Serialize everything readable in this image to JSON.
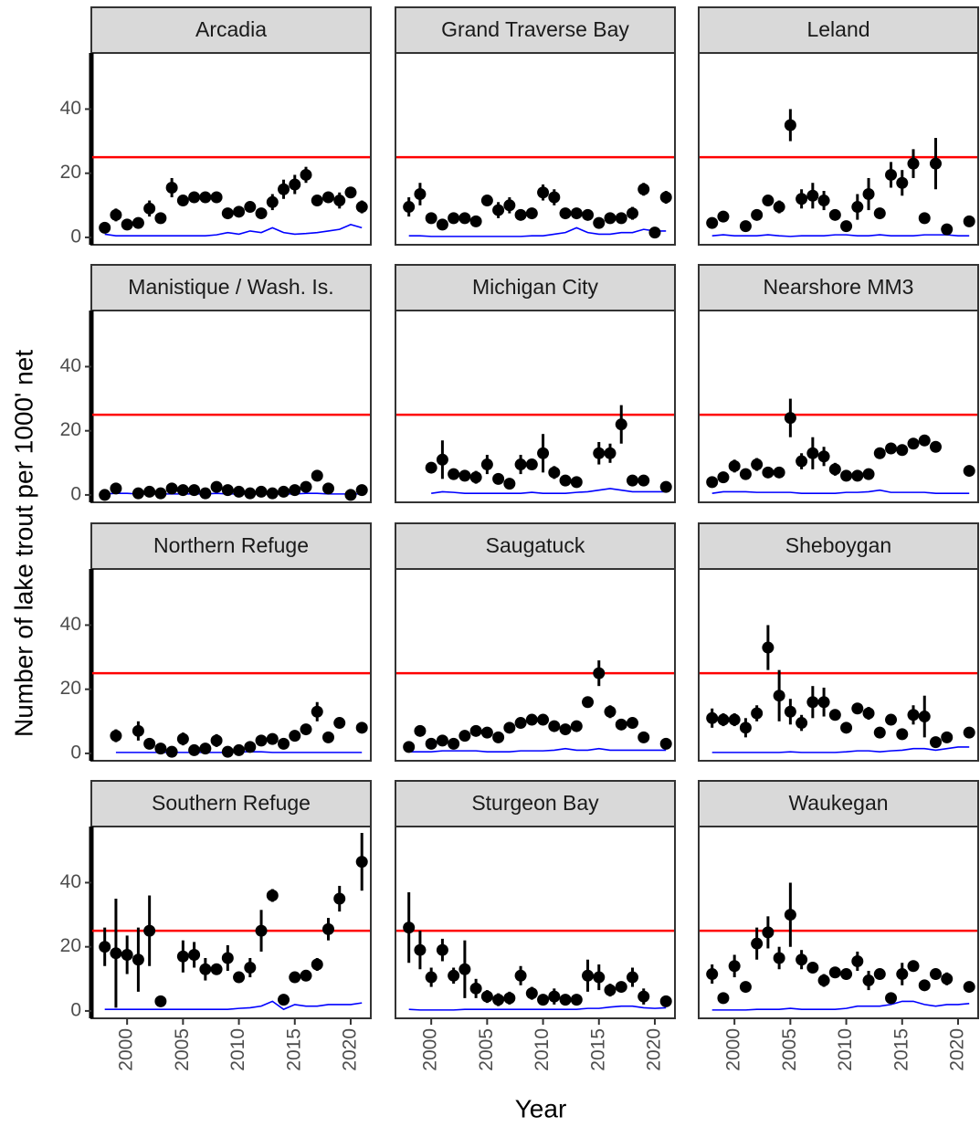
{
  "chart_data": {
    "type": "facet-errorbar",
    "xlabel": "Year",
    "ylabel": "Number of lake trout per 1000' net",
    "xlim": [
      1996.8,
      2021.8
    ],
    "ylim": [
      -2.3,
      57.5
    ],
    "xticks": [
      2000,
      2005,
      2010,
      2015,
      2020
    ],
    "yticks": [
      0,
      20,
      40
    ],
    "point_color": "#000000",
    "line_color": "#0000ff",
    "reference_line": {
      "value": 25,
      "color": "#ff0000"
    },
    "x": [
      1998,
      1999,
      2000,
      2001,
      2002,
      2003,
      2004,
      2005,
      2006,
      2007,
      2008,
      2009,
      2010,
      2011,
      2012,
      2013,
      2014,
      2015,
      2016,
      2017,
      2018,
      2019,
      2020,
      2021
    ],
    "panels": [
      {
        "title": "Arcadia",
        "values": [
          3,
          7,
          4,
          4.5,
          9,
          6,
          15.5,
          11.5,
          12.5,
          12.5,
          12.5,
          7.5,
          8,
          9.5,
          7.5,
          11,
          15,
          16.5,
          19.5,
          11.5,
          12.5,
          11.5,
          14,
          9.5
        ],
        "errors": [
          1,
          2,
          1,
          1,
          2.5,
          1,
          3,
          1.5,
          1.5,
          1.5,
          1.5,
          1,
          1,
          1.5,
          1,
          2.5,
          3,
          3,
          2.5,
          1.5,
          1.5,
          2.5,
          1.5,
          2
        ],
        "line": [
          1,
          0.5,
          0.5,
          0.5,
          0.5,
          0.5,
          0.5,
          0.5,
          0.5,
          0.5,
          0.8,
          1.5,
          1,
          2,
          1.5,
          3,
          1.5,
          1,
          1.2,
          1.5,
          2,
          2.5,
          4,
          3
        ]
      },
      {
        "title": "Grand Traverse Bay",
        "values": [
          9.5,
          13.5,
          6,
          4,
          6,
          6,
          5,
          11.5,
          8.5,
          10,
          7,
          7.5,
          14,
          12.5,
          7.5,
          7.5,
          7,
          4.5,
          6,
          6,
          7.5,
          15,
          1.5,
          12.5
        ],
        "errors": [
          3,
          3.5,
          1,
          1,
          1,
          1,
          1,
          1,
          2.5,
          2.5,
          1,
          1,
          2.5,
          2.5,
          1,
          1,
          1,
          1,
          1,
          1,
          2,
          2,
          1,
          2
        ],
        "line": [
          0.5,
          0.5,
          0.3,
          0.3,
          0.3,
          0.3,
          0.3,
          0.3,
          0.3,
          0.3,
          0.3,
          0.5,
          0.5,
          1,
          1.5,
          3,
          1.5,
          1,
          1,
          1.5,
          1.5,
          2.5,
          2,
          2
        ]
      },
      {
        "title": "Leland",
        "values": [
          4.5,
          6.5,
          null,
          3.5,
          7,
          11.5,
          9.5,
          35,
          12,
          13,
          11.5,
          7,
          3.5,
          9.5,
          13.5,
          7.5,
          19.5,
          17,
          23,
          6,
          23,
          2.5,
          null,
          5
        ],
        "errors": [
          1.5,
          1,
          null,
          1,
          1.5,
          1.5,
          2,
          5,
          3,
          4,
          3,
          1,
          1,
          4,
          5,
          1,
          4,
          4,
          4.5,
          1,
          8,
          1,
          null,
          1
        ],
        "line": [
          0.5,
          0.8,
          0.5,
          0.5,
          0.5,
          0.8,
          0.5,
          0.3,
          0.5,
          0.5,
          0.5,
          0.8,
          0.8,
          0.5,
          0.5,
          0.8,
          0.5,
          0.5,
          0.5,
          0.8,
          0.8,
          0.8,
          0.5,
          0.5
        ]
      },
      {
        "title": "Manistique / Wash. Is.",
        "values": [
          0,
          2,
          null,
          0.5,
          1,
          0.5,
          2,
          1.5,
          1.5,
          0.5,
          2.5,
          1.5,
          1,
          0.5,
          1,
          0.5,
          1,
          1.5,
          2.5,
          6,
          2,
          null,
          0,
          1.5
        ],
        "errors": [
          0.5,
          1,
          null,
          0.5,
          0.5,
          0.5,
          0.5,
          0.5,
          0.5,
          0.5,
          1.5,
          0.5,
          0.5,
          0.5,
          0.5,
          0.5,
          0.5,
          0.5,
          0.5,
          1,
          0.5,
          null,
          0.5,
          0.5
        ],
        "line": [
          0.3,
          0.5,
          0.5,
          0.3,
          0.3,
          0.3,
          0.3,
          0.3,
          0.3,
          0.3,
          0.5,
          0.3,
          0.3,
          0.3,
          0.3,
          0.3,
          0.3,
          0.3,
          0.5,
          0.5,
          0.3,
          0.3,
          0.3,
          0.3
        ]
      },
      {
        "title": "Michigan City",
        "values": [
          null,
          null,
          8.5,
          11,
          6.5,
          6,
          5.5,
          9.5,
          5,
          3.5,
          9.5,
          9.5,
          13,
          7,
          4.5,
          4,
          null,
          13,
          13,
          22,
          4.5,
          4.5,
          null,
          2.5
        ],
        "errors": [
          null,
          null,
          1,
          6,
          1,
          1,
          2,
          3,
          1,
          1,
          3,
          1,
          6,
          2,
          1,
          1,
          null,
          3.5,
          3,
          6,
          1,
          1,
          null,
          1
        ],
        "line": [
          null,
          null,
          0.5,
          1,
          0.8,
          0.5,
          0.5,
          0.5,
          0.5,
          0.5,
          0.5,
          0.8,
          0.5,
          0.5,
          0.5,
          0.8,
          1,
          1.5,
          2,
          1.5,
          1,
          1,
          1,
          1
        ]
      },
      {
        "title": "Nearshore MM3",
        "values": [
          4,
          5.5,
          9,
          6.5,
          9.5,
          7,
          7,
          24,
          10.5,
          13,
          12,
          8,
          6,
          6,
          6.5,
          13,
          14.5,
          14,
          16,
          17,
          15,
          null,
          null,
          7.5
        ],
        "errors": [
          1,
          1.5,
          2,
          1,
          2,
          1,
          1,
          6,
          2.5,
          5,
          3,
          2,
          1,
          1,
          1,
          1.5,
          1.5,
          1.5,
          1,
          1,
          1.5,
          null,
          null,
          1
        ],
        "line": [
          0.5,
          1,
          1,
          1,
          0.8,
          0.8,
          0.8,
          0.8,
          0.5,
          0.5,
          0.5,
          0.5,
          0.8,
          0.8,
          1,
          1.5,
          0.8,
          0.8,
          0.8,
          0.8,
          0.5,
          0.5,
          0.5,
          0.5
        ]
      },
      {
        "title": "Northern Refuge",
        "values": [
          null,
          5.5,
          null,
          7,
          3,
          1.5,
          0.5,
          4.5,
          1,
          1.5,
          4,
          0.5,
          1,
          2,
          4,
          4.5,
          3,
          5.5,
          7.5,
          13,
          5,
          9.5,
          null,
          8
        ],
        "errors": [
          null,
          2,
          null,
          3,
          1,
          1,
          0.5,
          2,
          0.5,
          1,
          2,
          0.5,
          0.5,
          1,
          1,
          1,
          1,
          1,
          1.5,
          3,
          1,
          1.5,
          null,
          1.5
        ],
        "line": [
          null,
          0.3,
          0.3,
          0.3,
          0.3,
          0.3,
          0.3,
          0.3,
          0.3,
          0.3,
          0.3,
          0.3,
          0.5,
          0.5,
          0.5,
          0.3,
          0.3,
          0.3,
          0.3,
          0.3,
          0.3,
          0.3,
          0.3,
          0.3
        ]
      },
      {
        "title": "Saugatuck",
        "values": [
          2,
          7,
          3,
          4,
          3,
          5.5,
          7,
          6.5,
          5,
          8,
          9.5,
          10.5,
          10.5,
          8.5,
          7.5,
          8.5,
          16,
          25,
          13,
          9,
          9.5,
          5,
          null,
          3
        ],
        "errors": [
          0.5,
          1,
          0.5,
          1,
          0.5,
          1,
          1,
          1,
          1,
          1,
          1,
          1.5,
          1.5,
          1.5,
          1,
          1,
          1.5,
          4,
          2,
          1,
          1,
          1,
          null,
          1
        ],
        "line": [
          0.5,
          0.5,
          0.5,
          0.8,
          0.8,
          0.8,
          0.8,
          0.5,
          0.5,
          0.5,
          0.8,
          0.8,
          0.8,
          1,
          1.5,
          1,
          1,
          1.5,
          1,
          1,
          1,
          1,
          1,
          1
        ]
      },
      {
        "title": "Sheboygan",
        "values": [
          11,
          10.5,
          10.5,
          8,
          12.5,
          33,
          18,
          13,
          9.5,
          16,
          16,
          12,
          8,
          14,
          12.5,
          6.5,
          10.5,
          6,
          12,
          11.5,
          3.5,
          5,
          null,
          6.5
        ],
        "errors": [
          3,
          2,
          2,
          3,
          2.5,
          7,
          8,
          4,
          2.5,
          5,
          4.5,
          1,
          1,
          1,
          2,
          1,
          1.5,
          1,
          3,
          6.5,
          1,
          1,
          null,
          1.5
        ],
        "line": [
          0.3,
          0.3,
          0.3,
          0.3,
          0.3,
          0.3,
          0.3,
          0.5,
          0.3,
          0.3,
          0.3,
          0.3,
          0.5,
          0.8,
          0.8,
          0.5,
          0.8,
          1,
          1.5,
          1.5,
          1,
          1.5,
          2,
          2
        ]
      },
      {
        "title": "Southern Refuge",
        "values": [
          20,
          18,
          17.5,
          16,
          25,
          3,
          null,
          17,
          17.5,
          13,
          13,
          16.5,
          10.5,
          13.5,
          25,
          36,
          3.5,
          10.5,
          11,
          14.5,
          25.5,
          35,
          null,
          46.5
        ],
        "errors": [
          6,
          17,
          6,
          10,
          11,
          1,
          null,
          5,
          4,
          3.5,
          1.5,
          4,
          1.5,
          3,
          6.5,
          2,
          1,
          1.5,
          1.5,
          2,
          3.5,
          4,
          null,
          9
        ],
        "line": [
          0.5,
          0.5,
          0.5,
          0.5,
          0.5,
          0.5,
          0.5,
          0.5,
          0.5,
          0.5,
          0.5,
          0.5,
          0.8,
          1,
          1.5,
          3,
          0.5,
          2,
          1.5,
          1.5,
          2,
          2,
          2,
          2.5
        ]
      },
      {
        "title": "Sturgeon Bay",
        "values": [
          26,
          19,
          10.5,
          19,
          11,
          13,
          7,
          4.5,
          3.5,
          4,
          11,
          5.5,
          3.5,
          4.5,
          3.5,
          3.5,
          11,
          10.5,
          6.5,
          7.5,
          10.5,
          4.5,
          null,
          3
        ],
        "errors": [
          11,
          6,
          3,
          3.5,
          2.5,
          9,
          3,
          2,
          2,
          2,
          3,
          2,
          1,
          2.5,
          1,
          1,
          5,
          4,
          2,
          1.5,
          3,
          2.5,
          null,
          1
        ],
        "line": [
          0.5,
          0.3,
          0.3,
          0.3,
          0.3,
          0.5,
          0.5,
          0.5,
          0.5,
          0.5,
          0.5,
          0.5,
          0.5,
          0.5,
          0.5,
          0.5,
          0.8,
          0.8,
          1.2,
          1.5,
          1.5,
          1,
          0.8,
          1
        ]
      },
      {
        "title": "Waukegan",
        "values": [
          11.5,
          4,
          14,
          7.5,
          21,
          24.5,
          16.5,
          30,
          16,
          13.5,
          9.5,
          12,
          11.5,
          15.5,
          9.5,
          11.5,
          4,
          11.5,
          14,
          8,
          11.5,
          10,
          null,
          7.5
        ],
        "errors": [
          3,
          1,
          3.5,
          1,
          5,
          5,
          3.5,
          10,
          3,
          1.5,
          2,
          1,
          1,
          3,
          3,
          1.5,
          1,
          3.5,
          1.5,
          1,
          1.5,
          2,
          null,
          1.5
        ],
        "line": [
          0.3,
          0.3,
          0.3,
          0.3,
          0.5,
          0.5,
          0.5,
          0.8,
          0.5,
          0.5,
          0.5,
          0.5,
          0.8,
          1.5,
          1.5,
          1.5,
          2,
          3,
          3,
          2,
          1.5,
          2,
          2,
          2.3
        ]
      }
    ]
  }
}
